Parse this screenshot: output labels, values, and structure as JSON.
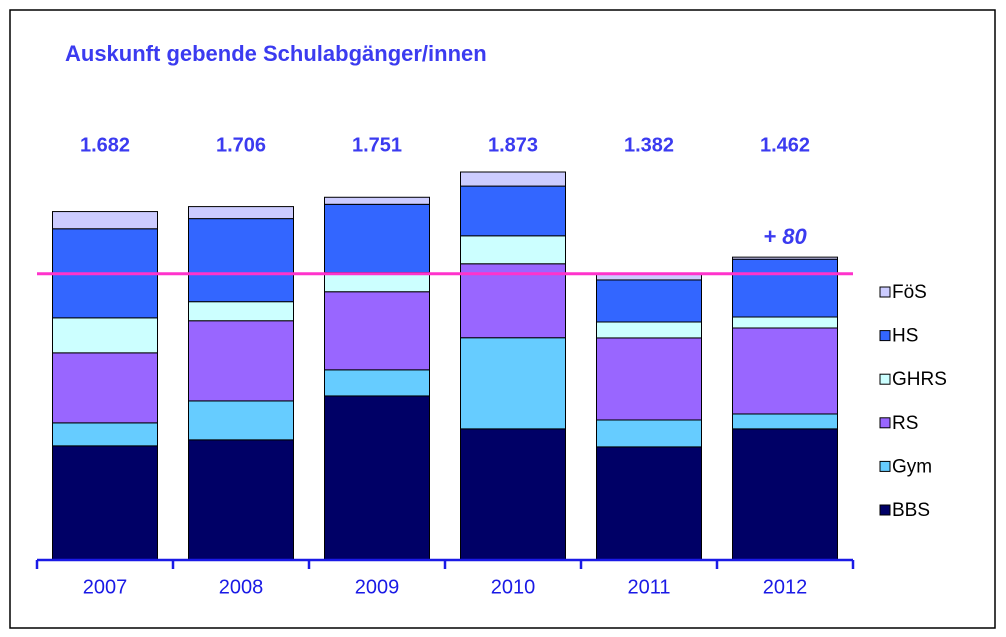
{
  "chart_data": {
    "type": "stacked_bar",
    "title": "Auskunft gebende Schulabgänger/innen",
    "categories": [
      "2007",
      "2008",
      "2009",
      "2010",
      "2011",
      "2012"
    ],
    "series": [
      {
        "name": "BBS",
        "color": "#000066",
        "values": [
          551,
          580,
          792,
          633,
          546,
          633
        ]
      },
      {
        "name": "Gym",
        "color": "#66ccff",
        "values": [
          111,
          188,
          126,
          440,
          130,
          72
        ]
      },
      {
        "name": "RS",
        "color": "#9966ff",
        "values": [
          338,
          387,
          377,
          357,
          396,
          415
        ]
      },
      {
        "name": "GHRS",
        "color": "#ccffff",
        "values": [
          169,
          92,
          92,
          135,
          77,
          53
        ]
      },
      {
        "name": "HS",
        "color": "#3366ff",
        "values": [
          430,
          401,
          330,
          240,
          203,
          279
        ]
      },
      {
        "name": "FöS",
        "color": "#ccccff",
        "values": [
          83,
          58,
          34,
          68,
          30,
          10
        ]
      }
    ],
    "totals": [
      1682,
      1706,
      1751,
      1873,
      1382,
      1462
    ],
    "value_labels": [
      "1.682",
      "1.706",
      "1.751",
      "1.873",
      "1.382",
      "1.462"
    ],
    "annotation": "+ 80"
  }
}
